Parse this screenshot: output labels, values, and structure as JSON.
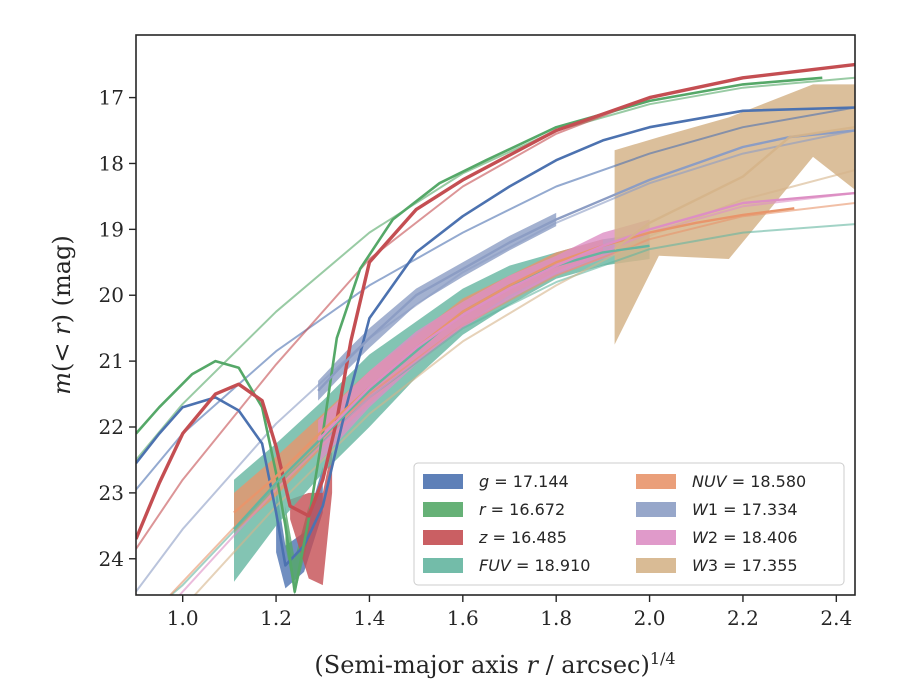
{
  "chart_data": {
    "type": "line",
    "title": "",
    "xlabel_html": "(Semi-major axis <tspan font-style=\"italic\">r</tspan> / arcsec)<tspan dy=\"-9\" font-size=\"16\">1/4</tspan>",
    "ylabel_html": "<tspan font-style=\"italic\">m</tspan>(&lt; <tspan font-style=\"italic\">r</tspan>) (mag)",
    "xlim": [
      0.9,
      2.44
    ],
    "ylim": [
      24.55,
      16.05
    ],
    "y_inverted": true,
    "grid": false,
    "legend_position": "lower-right",
    "legend_columns": 2,
    "xticks": [
      1.0,
      1.2,
      1.4,
      1.6,
      1.8,
      2.0,
      2.2,
      2.4
    ],
    "xtick_labels": [
      "1.0",
      "1.2",
      "1.4",
      "1.6",
      "1.8",
      "2.0",
      "2.2",
      "2.4"
    ],
    "yticks": [
      17,
      18,
      19,
      20,
      21,
      22,
      23,
      24
    ],
    "ytick_labels": [
      "17",
      "18",
      "19",
      "20",
      "21",
      "22",
      "23",
      "24"
    ],
    "series": [
      {
        "key": "g",
        "legend_label": "g = 17.144",
        "legend_italic": "g",
        "legend_rest": " = 17.144",
        "color": "#4c72b0",
        "model": {
          "x": [
            0.9,
            1.0,
            1.2,
            1.4,
            1.6,
            1.8,
            2.0,
            2.2,
            2.44
          ],
          "y": [
            22.95,
            22.1,
            20.85,
            19.85,
            19.05,
            18.35,
            17.85,
            17.45,
            17.15
          ]
        },
        "data": {
          "x": [
            0.9,
            0.95,
            1.0,
            1.07,
            1.12,
            1.17,
            1.2,
            1.22,
            1.26,
            1.3,
            1.35,
            1.4,
            1.5,
            1.6,
            1.7,
            1.8,
            1.9,
            2.0,
            2.2,
            2.44
          ],
          "y": [
            22.55,
            22.1,
            21.7,
            21.55,
            21.75,
            22.25,
            23.3,
            24.1,
            23.8,
            23.2,
            21.7,
            20.35,
            19.35,
            18.8,
            18.35,
            17.95,
            17.65,
            17.45,
            17.2,
            17.15
          ]
        },
        "band": {
          "x": [
            1.2,
            1.22,
            1.26,
            1.3
          ],
          "y_lower": [
            22.9,
            23.8,
            23.6,
            22.6
          ],
          "y_upper": [
            23.9,
            24.45,
            24.2,
            23.3
          ]
        }
      },
      {
        "key": "r",
        "legend_label": "r = 16.672",
        "legend_italic": "r",
        "legend_rest": " = 16.672",
        "color": "#55a868",
        "model": {
          "x": [
            0.9,
            1.0,
            1.2,
            1.4,
            1.6,
            1.8,
            2.0,
            2.2,
            2.44
          ],
          "y": [
            22.5,
            21.65,
            20.25,
            19.05,
            18.15,
            17.5,
            17.1,
            16.85,
            16.7
          ]
        },
        "data": {
          "x": [
            0.9,
            0.95,
            1.02,
            1.07,
            1.12,
            1.17,
            1.2,
            1.22,
            1.24,
            1.27,
            1.3,
            1.33,
            1.38,
            1.45,
            1.55,
            1.65,
            1.8,
            2.0,
            2.2,
            2.37
          ],
          "y": [
            22.1,
            21.7,
            21.2,
            21.0,
            21.1,
            21.7,
            22.7,
            23.5,
            24.5,
            23.4,
            22.1,
            20.65,
            19.6,
            18.85,
            18.3,
            17.95,
            17.45,
            17.05,
            16.8,
            16.7
          ]
        },
        "band": {
          "x": [
            1.22,
            1.24,
            1.27
          ],
          "y_lower": [
            23.2,
            24.0,
            23.2
          ],
          "y_upper": [
            23.8,
            24.55,
            23.7
          ]
        }
      },
      {
        "key": "z",
        "legend_label": "z = 16.485",
        "legend_italic": "z",
        "legend_rest": " = 16.485",
        "color": "#c44e52",
        "model": {
          "x": [
            0.9,
            1.0,
            1.2,
            1.4,
            1.6,
            1.8,
            2.0,
            2.2,
            2.44
          ],
          "y": [
            23.85,
            22.8,
            21.05,
            19.45,
            18.35,
            17.55,
            17.0,
            16.7,
            16.5
          ]
        },
        "data": {
          "x": [
            0.9,
            0.95,
            1.0,
            1.07,
            1.12,
            1.17,
            1.2,
            1.23,
            1.27,
            1.3,
            1.33,
            1.36,
            1.4,
            1.5,
            1.6,
            1.8,
            2.0,
            2.2,
            2.44
          ],
          "y": [
            23.7,
            22.85,
            22.1,
            21.5,
            21.35,
            21.6,
            22.3,
            23.2,
            23.35,
            22.8,
            21.9,
            20.7,
            19.5,
            18.7,
            18.25,
            17.5,
            17.0,
            16.7,
            16.5
          ]
        },
        "band": {
          "x": [
            1.23,
            1.27,
            1.3,
            1.32
          ],
          "y_lower": [
            23.1,
            23.0,
            23.0,
            22.3
          ],
          "y_upper": [
            23.4,
            24.3,
            24.4,
            23.0
          ]
        }
      },
      {
        "key": "FUV",
        "legend_label": "FUV = 18.910",
        "legend_italic": "FUV",
        "legend_rest": " = 18.910",
        "color": "#64b5a0",
        "model": {
          "x": [
            0.9,
            1.0,
            1.2,
            1.4,
            1.6,
            1.8,
            2.0,
            2.2,
            2.44
          ],
          "y": [
            25.0,
            24.4,
            22.9,
            21.55,
            20.5,
            19.8,
            19.3,
            19.05,
            18.92
          ]
        },
        "data": {
          "x": [
            1.11,
            1.2,
            1.3,
            1.4,
            1.5,
            1.6,
            1.7,
            1.8,
            1.9,
            2.0
          ],
          "y": [
            23.55,
            22.85,
            22.15,
            21.45,
            20.85,
            20.25,
            19.85,
            19.55,
            19.35,
            19.25
          ]
        },
        "band": {
          "x": [
            1.11,
            1.2,
            1.3,
            1.4,
            1.5,
            1.6,
            1.7,
            1.8,
            1.9,
            2.0
          ],
          "y_lower": [
            22.8,
            22.25,
            21.6,
            20.9,
            20.4,
            19.9,
            19.55,
            19.35,
            19.15,
            19.05
          ],
          "y_upper": [
            24.35,
            23.5,
            22.7,
            22.0,
            21.25,
            20.6,
            20.15,
            19.75,
            19.55,
            19.45
          ]
        }
      },
      {
        "key": "NUV",
        "legend_label": "NUV = 18.580",
        "legend_italic": "NUV",
        "legend_rest": " = 18.580",
        "color": "#e8956b",
        "model": {
          "x": [
            0.9,
            1.0,
            1.2,
            1.4,
            1.6,
            1.8,
            2.0,
            2.2,
            2.44
          ],
          "y": [
            25.1,
            24.35,
            22.85,
            21.5,
            20.45,
            19.7,
            19.15,
            18.8,
            18.6
          ]
        },
        "data": {
          "x": [
            1.11,
            1.2,
            1.3,
            1.4,
            1.5,
            1.6,
            1.7,
            1.8,
            1.9,
            2.0,
            2.1,
            2.2,
            2.31
          ],
          "y": [
            23.3,
            22.75,
            22.05,
            21.4,
            20.8,
            20.25,
            19.85,
            19.5,
            19.25,
            19.05,
            18.9,
            18.78,
            18.68
          ]
        },
        "band": {
          "x": [
            1.11,
            1.2,
            1.3,
            1.4,
            1.5,
            1.6,
            1.7,
            1.8,
            1.9
          ],
          "y_lower": [
            23.0,
            22.45,
            21.8,
            21.15,
            20.6,
            20.05,
            19.7,
            19.35,
            19.15
          ],
          "y_upper": [
            23.6,
            23.05,
            22.3,
            21.65,
            21.0,
            20.45,
            20.0,
            19.65,
            19.4
          ]
        }
      },
      {
        "key": "W1",
        "legend_label": "W1 = 17.334",
        "legend_italic": "W",
        "legend_rest": "1 = 17.334",
        "color": "#8c9dc4",
        "model": {
          "x": [
            0.9,
            1.0,
            1.2,
            1.4,
            1.6,
            1.8,
            2.0,
            2.2,
            2.44
          ],
          "y": [
            24.5,
            23.55,
            21.95,
            20.65,
            19.65,
            18.9,
            18.3,
            17.85,
            17.5
          ]
        },
        "data": {
          "x": [
            1.29,
            1.35,
            1.4,
            1.5,
            1.6,
            1.7,
            1.8,
            1.9,
            2.0,
            2.1,
            2.2,
            2.3,
            2.44
          ],
          "y": [
            21.45,
            21.0,
            20.65,
            20.0,
            19.6,
            19.2,
            18.85,
            18.55,
            18.25,
            18.0,
            17.75,
            17.6,
            17.5
          ]
        },
        "band": {
          "x": [
            1.29,
            1.35,
            1.4,
            1.5,
            1.6,
            1.7,
            1.8
          ],
          "y_lower": [
            21.3,
            20.85,
            20.5,
            19.9,
            19.5,
            19.1,
            18.75
          ],
          "y_upper": [
            21.6,
            21.15,
            20.8,
            20.15,
            19.72,
            19.32,
            18.95
          ]
        }
      },
      {
        "key": "W2",
        "legend_label": "W2 = 18.406",
        "legend_italic": "W",
        "legend_rest": "2 = 18.406",
        "color": "#dd8fc4",
        "model": {
          "x": [
            0.9,
            1.0,
            1.2,
            1.4,
            1.6,
            1.8,
            2.0,
            2.2,
            2.44
          ],
          "y": [
            25.3,
            24.5,
            22.95,
            21.55,
            20.45,
            19.65,
            19.05,
            18.65,
            18.45
          ]
        },
        "data": {
          "x": [
            1.29,
            1.4,
            1.5,
            1.6,
            1.7,
            1.8,
            1.9,
            2.0,
            2.1,
            2.2,
            2.44
          ],
          "y": [
            22.2,
            21.4,
            20.8,
            20.3,
            19.9,
            19.55,
            19.25,
            19.0,
            18.8,
            18.6,
            18.45
          ]
        },
        "band": {
          "x": [
            1.29,
            1.4,
            1.5,
            1.6,
            1.7,
            1.8,
            1.9,
            2.0
          ],
          "y_lower": [
            21.9,
            21.15,
            20.55,
            20.1,
            19.7,
            19.4,
            19.05,
            18.85
          ],
          "y_upper": [
            22.55,
            21.7,
            21.05,
            20.5,
            20.05,
            19.7,
            19.45,
            19.2
          ]
        }
      },
      {
        "key": "W3",
        "legend_label": "W3 = 17.355",
        "legend_italic": "W",
        "legend_rest": "3 = 17.355",
        "color": "#d5b48a",
        "model": {
          "x": [
            0.9,
            1.0,
            1.2,
            1.4,
            1.6,
            1.8,
            2.0,
            2.2,
            2.44
          ],
          "y": [
            25.4,
            24.75,
            23.2,
            21.8,
            20.7,
            19.85,
            19.1,
            18.55,
            18.1
          ]
        },
        "data": {
          "x": [
            1.925,
            2.0,
            2.1,
            2.2,
            2.3,
            2.44
          ],
          "y": [
            19.3,
            18.9,
            18.55,
            18.2,
            17.6,
            17.45
          ]
        },
        "band": {
          "x": [
            1.925,
            2.02,
            2.17,
            2.35,
            2.44
          ],
          "y_lower": [
            17.8,
            17.6,
            17.3,
            16.8,
            16.8
          ],
          "y_upper": [
            20.75,
            19.4,
            19.45,
            17.9,
            18.4
          ]
        }
      }
    ]
  }
}
